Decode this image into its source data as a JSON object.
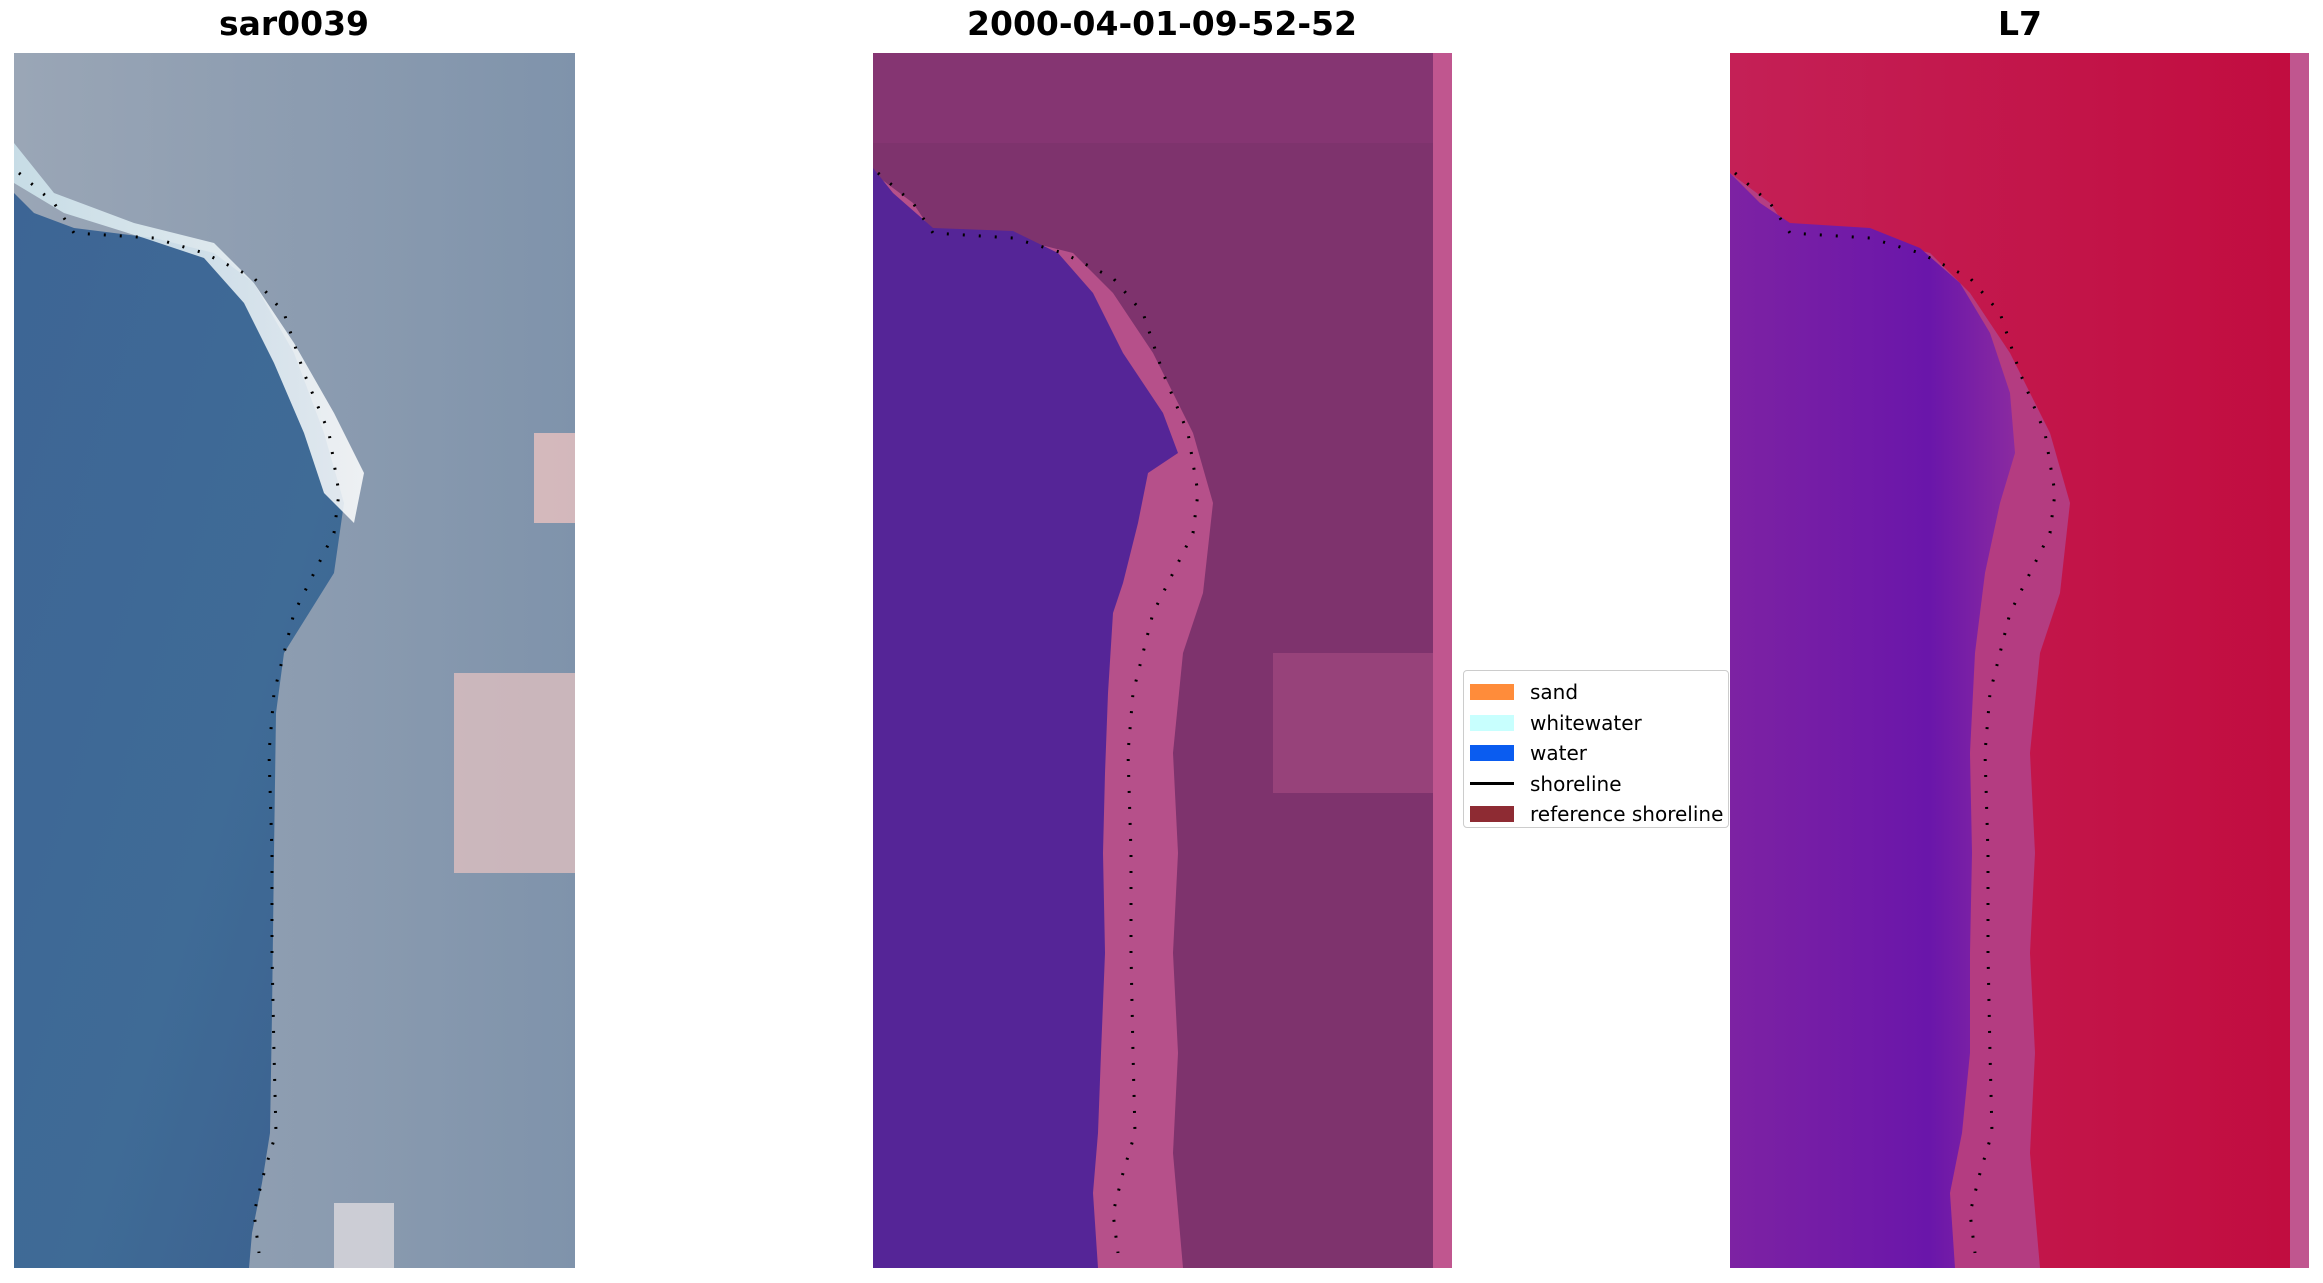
{
  "panels": [
    {
      "title": "sar0039",
      "image": "rgb-satellite-image"
    },
    {
      "title": "2000-04-01-09-52-52",
      "image": "classified-image"
    },
    {
      "title": "L7",
      "image": "mndwi-image"
    }
  ],
  "legend": {
    "items": [
      {
        "label": "sand",
        "color": "#ff8c3a",
        "kind": "patch"
      },
      {
        "label": "whitewater",
        "color": "#c8fffe",
        "kind": "patch"
      },
      {
        "label": "water",
        "color": "#0a5cf0",
        "kind": "patch"
      },
      {
        "label": "shoreline",
        "color": "#000000",
        "kind": "line"
      },
      {
        "label": "reference shoreline",
        "color": "#8e2b33",
        "kind": "patch"
      }
    ]
  },
  "colors": {
    "rgb_water": "#3d6593",
    "rgb_land": "#8c9db2",
    "class_water": "#552597",
    "class_land": "#7e336d",
    "class_edge": "#c0568f",
    "mndwi_water": "#7b20a6",
    "mndwi_land": "#c01a4e"
  }
}
